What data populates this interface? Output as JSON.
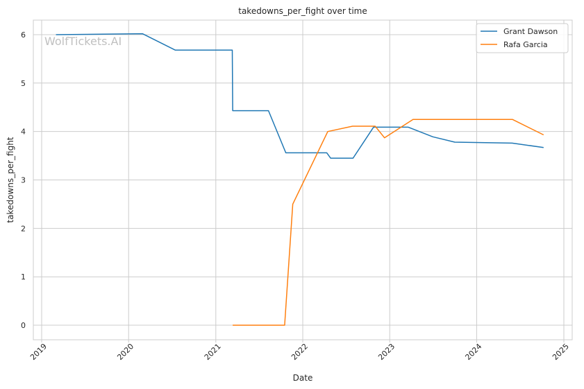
{
  "chart_data": {
    "type": "line",
    "title": "takedowns_per_fight over time",
    "xlabel": "Date",
    "ylabel": "takedowns_per_fight",
    "watermark": "WolfTickets.AI",
    "xlim": [
      "2018-11-27",
      "2025-02-05"
    ],
    "ylim": [
      -0.3,
      6.3
    ],
    "x_ticks": [
      "2019-01-01",
      "2020-01-01",
      "2021-01-01",
      "2022-01-01",
      "2023-01-01",
      "2024-01-01",
      "2025-01-01"
    ],
    "x_tick_labels": [
      "2019",
      "2020",
      "2021",
      "2022",
      "2023",
      "2024",
      "2025"
    ],
    "y_ticks": [
      0,
      1,
      2,
      3,
      4,
      5,
      6
    ],
    "grid": true,
    "legend_position": "top-right",
    "series": [
      {
        "name": "Grant Dawson",
        "color": "#1f77b4",
        "points": [
          [
            "2019-03-02",
            6.0
          ],
          [
            "2020-02-28",
            6.02
          ],
          [
            "2020-07-15",
            5.68
          ],
          [
            "2021-03-11",
            5.68
          ],
          [
            "2021-03-13",
            4.43
          ],
          [
            "2021-08-10",
            4.43
          ],
          [
            "2021-10-22",
            3.56
          ],
          [
            "2022-04-12",
            3.56
          ],
          [
            "2022-04-28",
            3.45
          ],
          [
            "2022-07-31",
            3.45
          ],
          [
            "2022-10-25",
            4.09
          ],
          [
            "2023-03-20",
            4.09
          ],
          [
            "2023-07-01",
            3.89
          ],
          [
            "2023-10-01",
            3.78
          ],
          [
            "2024-05-29",
            3.76
          ],
          [
            "2024-10-08",
            3.67
          ]
        ]
      },
      {
        "name": "Rafa Garcia",
        "color": "#ff7f0e",
        "points": [
          [
            "2021-03-13",
            0.0
          ],
          [
            "2021-10-17",
            0.0
          ],
          [
            "2021-11-20",
            2.5
          ],
          [
            "2022-04-16",
            4.0
          ],
          [
            "2022-07-29",
            4.11
          ],
          [
            "2022-11-01",
            4.11
          ],
          [
            "2022-12-10",
            3.87
          ],
          [
            "2023-04-09",
            4.25
          ],
          [
            "2024-05-30",
            4.25
          ],
          [
            "2024-10-08",
            3.93
          ]
        ]
      }
    ]
  }
}
